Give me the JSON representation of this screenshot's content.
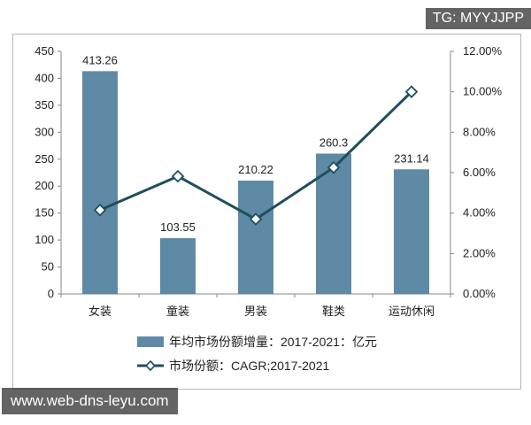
{
  "chart_data": {
    "type": "bar+line",
    "categories": [
      "女装",
      "童装",
      "男装",
      "鞋类",
      "运动休闲"
    ],
    "series": [
      {
        "name": "年均市场份额增量：2017-2021：亿元",
        "type": "bar",
        "axis": "left",
        "values": [
          413.26,
          103.55,
          210.22,
          260.3,
          231.14
        ],
        "labels": [
          "413.26",
          "103.55",
          "210.22",
          "260.3",
          "231.14"
        ]
      },
      {
        "name": "市场份额：CAGR;2017-2021",
        "type": "line",
        "axis": "right",
        "values": [
          0.0415,
          0.0582,
          0.037,
          0.0625,
          0.1
        ]
      }
    ],
    "ylim_left": [
      0,
      450
    ],
    "yticks_left": [
      "0",
      "50",
      "100",
      "150",
      "200",
      "250",
      "300",
      "350",
      "400",
      "450"
    ],
    "ylim_right": [
      0,
      0.12
    ],
    "yticks_right": [
      "0.00%",
      "2.00%",
      "4.00%",
      "6.00%",
      "8.00%",
      "10.00%",
      "12.00%"
    ],
    "grid": false,
    "legend_position": "bottom",
    "colors": {
      "bar": "#5e8aa5",
      "line": "#1f4e60",
      "marker_fill": "#ffffff"
    }
  },
  "watermarks": {
    "top": "TG: MYYJJPP",
    "bottom": "www.web-dns-leyu.com"
  }
}
